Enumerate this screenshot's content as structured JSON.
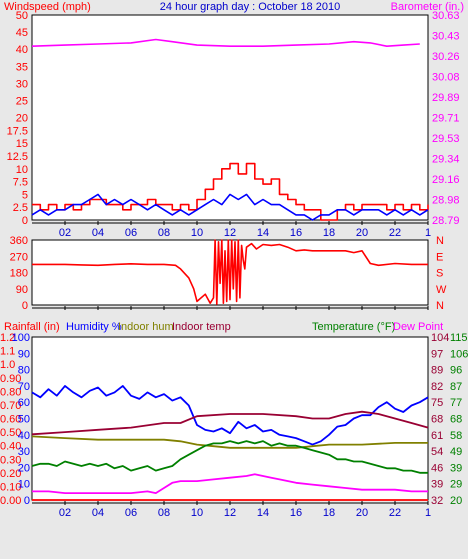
{
  "chart_data": [
    {
      "type": "line",
      "title": "24 hour graph day : October 18 2010",
      "ylabel_left": "Windspeed (mph)",
      "ylabel_right": "Barometer (in.)",
      "x_ticks": [
        "02",
        "04",
        "06",
        "08",
        "10",
        "12",
        "14",
        "16",
        "18",
        "20",
        "22",
        "1"
      ],
      "xlim": [
        0,
        24
      ],
      "y_left_ticks": [
        "0",
        "2.5",
        "5",
        "7.5",
        "10",
        "12.5",
        "15",
        "17.5",
        "20",
        "25",
        "30",
        "35",
        "40",
        "45",
        "50"
      ],
      "y_left_range": [
        0,
        50
      ],
      "y_right_ticks": [
        "28.79",
        "28.98",
        "29.16",
        "29.34",
        "29.53",
        "29.71",
        "29.89",
        "30.08",
        "30.26",
        "30.43",
        "30.63"
      ],
      "y_right_range": [
        28.79,
        30.63
      ],
      "grid": false,
      "series": [
        {
          "name": "Barometer",
          "axis": "right",
          "color": "#ff00ff",
          "x": [
            0,
            2,
            4,
            6,
            7.5,
            8.5,
            10,
            12,
            14,
            16,
            18,
            19.5,
            20.5,
            21.5,
            22.5,
            23.5
          ],
          "y": [
            30.35,
            30.36,
            30.37,
            30.38,
            30.41,
            30.39,
            30.36,
            30.35,
            30.35,
            30.36,
            30.37,
            30.39,
            30.38,
            30.35,
            30.36,
            30.37
          ]
        },
        {
          "name": "Wind gust",
          "axis": "left",
          "color": "#ff0000",
          "step": true,
          "x": [
            0,
            0.5,
            1,
            1.5,
            2,
            2.5,
            3,
            3.5,
            4,
            4.5,
            5,
            5.5,
            6,
            6.5,
            7,
            7.5,
            8,
            8.5,
            9,
            9.5,
            10,
            10.5,
            11,
            11.5,
            12,
            12.5,
            13,
            13.5,
            14,
            14.5,
            15,
            15.5,
            16,
            16.5,
            17,
            17.5,
            18,
            18.5,
            19,
            19.5,
            20,
            20.5,
            21,
            21.5,
            22,
            22.5,
            23,
            23.5,
            24
          ],
          "y": [
            3,
            2,
            3,
            2,
            3,
            2,
            3,
            4,
            4,
            3,
            3,
            2,
            3,
            3,
            4,
            3,
            3,
            2,
            3,
            2,
            4,
            6,
            8,
            10,
            11,
            9,
            11,
            8,
            7,
            8,
            5,
            4,
            3,
            2,
            2,
            0,
            0,
            2,
            3,
            2,
            3,
            3,
            3,
            2,
            3,
            2,
            3,
            2,
            3
          ]
        },
        {
          "name": "Windspeed",
          "axis": "left",
          "color": "#0000ff",
          "x": [
            0,
            0.5,
            1,
            1.5,
            2,
            2.5,
            3,
            3.5,
            4,
            4.5,
            5,
            5.5,
            6,
            6.5,
            7,
            7.5,
            8,
            8.5,
            9,
            9.5,
            10,
            10.5,
            11,
            11.5,
            12,
            12.5,
            13,
            13.5,
            14,
            14.5,
            15,
            15.5,
            16,
            16.5,
            17,
            17.5,
            18,
            18.5,
            19,
            19.5,
            20,
            20.5,
            21,
            21.5,
            22,
            22.5,
            23,
            23.5,
            24
          ],
          "y": [
            1,
            2,
            1,
            2,
            2,
            3,
            3,
            4,
            5,
            3,
            4,
            3,
            4,
            3,
            2,
            3,
            2,
            1,
            2,
            1,
            2,
            3,
            4,
            3,
            5,
            4,
            5,
            3,
            4,
            3,
            3,
            2,
            1,
            1,
            0,
            1,
            1,
            2,
            2,
            1,
            2,
            2,
            2,
            1,
            2,
            1,
            2,
            1,
            2
          ]
        }
      ]
    },
    {
      "type": "line",
      "ylabel_right": "N W S E N",
      "x_ticks": [
        "02",
        "04",
        "06",
        "08",
        "10",
        "12",
        "14",
        "16",
        "18",
        "20",
        "22",
        "1"
      ],
      "xlim": [
        0,
        24
      ],
      "y_left_ticks": [
        "0",
        "90",
        "180",
        "270",
        "360"
      ],
      "y_left_range": [
        0,
        360
      ],
      "y_right_ticks": [
        "N",
        "E",
        "S",
        "W",
        "N"
      ],
      "series": [
        {
          "name": "Wind direction",
          "color": "#ff0000",
          "x": [
            0,
            2,
            3,
            4,
            5,
            6,
            7,
            8,
            8.7,
            9,
            9.5,
            9.8,
            10,
            10.5,
            10.8,
            11,
            11.1,
            11.2,
            11.3,
            11.4,
            11.5,
            11.6,
            11.7,
            11.8,
            11.9,
            12,
            12.1,
            12.2,
            12.3,
            12.4,
            12.5,
            12.6,
            12.7,
            12.8,
            12.9,
            13,
            13.3,
            13.5,
            13.6,
            14,
            14.5,
            15,
            15.5,
            16,
            16.5,
            17,
            18,
            19,
            19.5,
            20,
            20.5,
            21,
            22,
            23,
            24
          ],
          "y": [
            225,
            225,
            222,
            220,
            225,
            228,
            225,
            225,
            220,
            200,
            150,
            90,
            20,
            60,
            10,
            40,
            360,
            5,
            350,
            120,
            360,
            10,
            300,
            20,
            360,
            30,
            360,
            90,
            350,
            20,
            360,
            40,
            330,
            250,
            200,
            320,
            340,
            320,
            310,
            335,
            330,
            335,
            320,
            300,
            305,
            300,
            300,
            300,
            290,
            300,
            230,
            220,
            230,
            225,
            225
          ]
        }
      ]
    },
    {
      "type": "line",
      "x_ticks": [
        "02",
        "04",
        "06",
        "08",
        "10",
        "12",
        "14",
        "16",
        "18",
        "20",
        "22",
        "1"
      ],
      "xlim": [
        0,
        24
      ],
      "legend_left": [
        "Rainfall (in)",
        "Humidity %",
        "Indoor hum",
        "Indoor temp"
      ],
      "legend_right": [
        "Temperature (°F)",
        "Dew Point"
      ],
      "y_rain_ticks": [
        "0.00",
        "0.10",
        "0.20",
        "0.30",
        "0.40",
        "0.50",
        "0.60",
        "0.70",
        "0.80",
        "0.90",
        "1.0",
        "1.1",
        "1.2"
      ],
      "y_rain_range": [
        0,
        1.2
      ],
      "y_humidity_ticks": [
        "0",
        "10",
        "20",
        "30",
        "40",
        "50",
        "60",
        "70",
        "80",
        "90",
        "100"
      ],
      "y_humidity_range": [
        0,
        100
      ],
      "y_temp_ticks": [
        "32",
        "39",
        "46",
        "54",
        "61",
        "68",
        "75",
        "82",
        "89",
        "97",
        "104"
      ],
      "y_temp_range": [
        32,
        104
      ],
      "y_dew_ticks": [
        "20",
        "29",
        "39",
        "49",
        "58",
        "68",
        "77",
        "87",
        "96",
        "106",
        "115"
      ],
      "y_dew_range": [
        20,
        115
      ],
      "grid": false,
      "series": [
        {
          "name": "Rainfall",
          "axis": "rain",
          "color": "#ff0000",
          "x": [
            0,
            24
          ],
          "y": [
            0,
            0
          ]
        },
        {
          "name": "Humidity",
          "axis": "humidity",
          "color": "#0000ff",
          "x": [
            0,
            0.5,
            1,
            1.5,
            2,
            2.5,
            3,
            3.5,
            4,
            4.5,
            5,
            5.5,
            6,
            6.5,
            7,
            7.5,
            8,
            8.5,
            9,
            9.5,
            10,
            10.5,
            11,
            11.5,
            12,
            12.5,
            13,
            13.5,
            14,
            14.5,
            15,
            15.5,
            16,
            16.5,
            17,
            17.5,
            18,
            18.5,
            19,
            19.5,
            20,
            20.5,
            21,
            21.5,
            22,
            22.5,
            23,
            23.5,
            24
          ],
          "y": [
            66,
            63,
            68,
            64,
            70,
            66,
            63,
            67,
            69,
            64,
            66,
            70,
            64,
            62,
            66,
            63,
            65,
            61,
            63,
            58,
            46,
            43,
            42,
            44,
            41,
            48,
            44,
            46,
            42,
            43,
            40,
            39,
            38,
            36,
            34,
            36,
            40,
            45,
            46,
            50,
            52,
            52,
            57,
            60,
            56,
            54,
            58,
            60,
            63
          ]
        },
        {
          "name": "Indoor hum",
          "axis": "humidity",
          "color": "#808000",
          "x": [
            0,
            2,
            4,
            6,
            8,
            9,
            10,
            11,
            12,
            13,
            14,
            15,
            16,
            17,
            18,
            19,
            20,
            22,
            24
          ],
          "y": [
            39,
            38,
            37,
            37,
            37,
            36,
            34,
            33,
            32,
            32,
            32,
            32,
            32,
            33,
            34,
            34,
            34,
            35,
            35
          ]
        },
        {
          "name": "Indoor temp",
          "axis": "temp",
          "color": "#990033",
          "x": [
            0,
            2,
            4,
            6,
            8,
            9,
            10,
            12,
            14,
            16,
            17,
            18,
            19,
            20,
            21,
            22,
            23,
            24
          ],
          "y": [
            61,
            62,
            63,
            64,
            66,
            66,
            69,
            70,
            70,
            69,
            68,
            68,
            70,
            71,
            70,
            68,
            66,
            64
          ]
        },
        {
          "name": "Temperature",
          "axis": "temp",
          "color": "#008000",
          "x": [
            0,
            0.5,
            1,
            1.5,
            2,
            2.5,
            3,
            3.5,
            4,
            4.5,
            5,
            5.5,
            6,
            6.5,
            7,
            7.5,
            8,
            8.5,
            9,
            9.5,
            10,
            10.5,
            11,
            11.5,
            12,
            12.5,
            13,
            13.5,
            14,
            14.5,
            15,
            15.5,
            16,
            16.5,
            17,
            17.5,
            18,
            18.5,
            19,
            19.5,
            20,
            20.5,
            21,
            21.5,
            22,
            22.5,
            23,
            23.5,
            24
          ],
          "y": [
            47,
            48,
            48,
            47,
            49,
            48,
            47,
            48,
            47,
            48,
            46,
            47,
            45,
            46,
            47,
            45,
            46,
            47,
            50,
            52,
            54,
            56,
            57,
            57,
            58,
            57,
            58,
            57,
            58,
            56,
            57,
            56,
            56,
            55,
            54,
            53,
            52,
            50,
            50,
            49,
            49,
            48,
            47,
            46,
            46,
            45,
            45,
            44,
            44
          ]
        },
        {
          "name": "Dew Point",
          "axis": "dew",
          "color": "#ff00ff",
          "x": [
            0,
            1,
            2,
            3,
            4,
            5,
            6,
            7,
            7.5,
            8,
            8.5,
            9,
            10,
            11,
            12,
            13,
            13.5,
            14,
            14.5,
            15,
            16,
            17,
            18,
            19,
            20,
            21,
            22,
            23,
            24
          ],
          "y": [
            25,
            25,
            24,
            24,
            24,
            24,
            24,
            25,
            24,
            27,
            30,
            31,
            31,
            32,
            33,
            34,
            35,
            34,
            33,
            32,
            30,
            29,
            28,
            27,
            26,
            26,
            26,
            25,
            25
          ]
        }
      ]
    }
  ],
  "colors": {
    "background": "#e8e8e8",
    "plot_background": "#ffffff",
    "accent_red": "#ff0000",
    "accent_blue": "#0000ff",
    "accent_magenta": "#ff00ff",
    "accent_green": "#008000",
    "accent_olive": "#808000",
    "accent_maroon": "#990033"
  }
}
